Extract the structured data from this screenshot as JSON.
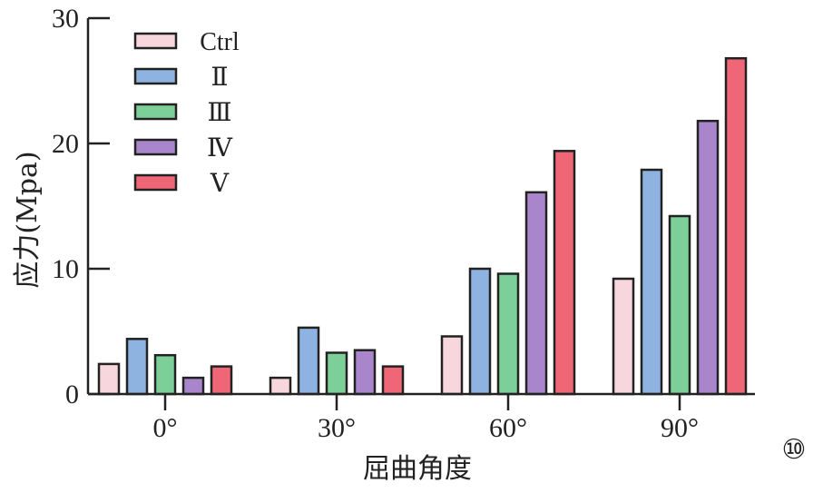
{
  "chart_data": {
    "type": "bar",
    "xlabel": "屈曲角度",
    "ylabel": "应力(Mpa)",
    "categories": [
      "0°",
      "30°",
      "60°",
      "90°"
    ],
    "ylim": [
      0,
      30
    ],
    "yticks": [
      "0",
      "10",
      "20",
      "30"
    ],
    "grid": false,
    "legend_position": "top-left",
    "series": [
      {
        "name": "Ctrl",
        "color": "#f7d6dd",
        "values": [
          2.4,
          1.3,
          4.6,
          9.2
        ]
      },
      {
        "name": "Ⅱ",
        "color": "#8fb3e0",
        "values": [
          4.4,
          5.3,
          10.0,
          17.9
        ]
      },
      {
        "name": "Ⅲ",
        "color": "#7ccf99",
        "values": [
          3.1,
          3.3,
          9.6,
          14.2
        ]
      },
      {
        "name": "Ⅳ",
        "color": "#a985cc",
        "values": [
          1.3,
          3.5,
          16.1,
          21.8
        ]
      },
      {
        "name": "Ⅴ",
        "color": "#ef6677",
        "values": [
          2.2,
          2.2,
          19.4,
          26.8
        ]
      }
    ]
  },
  "figure_number": "⑩"
}
